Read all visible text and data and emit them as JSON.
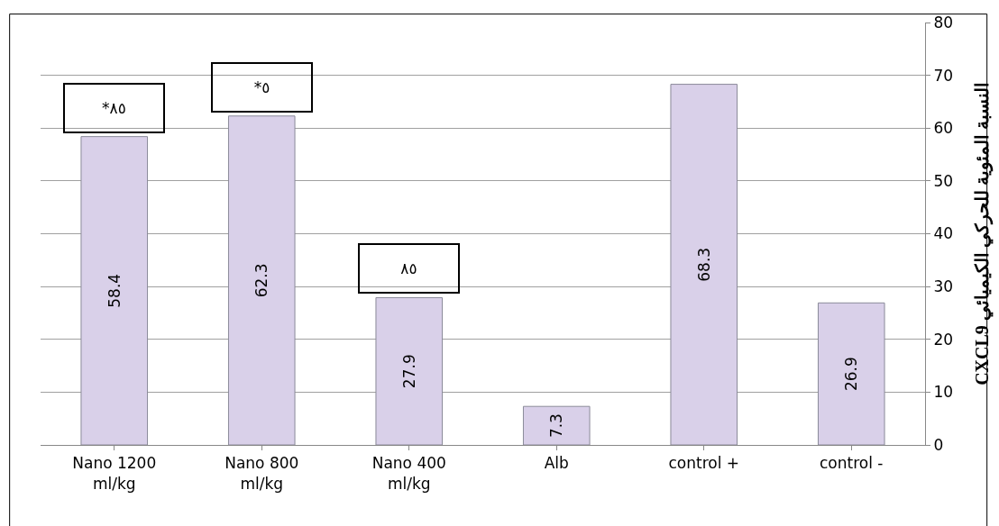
{
  "chart_data": {
    "type": "bar",
    "ylabel": "النسبة المئوية للحركي الكيميائي CXCL9",
    "categories": [
      "Nano 1200 ml/kg",
      "Nano 800 ml/kg",
      "Nano 400 ml/kg",
      "Alb",
      "control +",
      "control -"
    ],
    "values": [
      58.4,
      62.3,
      27.9,
      7.3,
      68.3,
      26.9
    ],
    "color": "#d9d0e9",
    "data_labels": true,
    "ylim": [
      0,
      80
    ],
    "yticks": [
      0,
      10,
      20,
      30,
      40,
      50,
      60,
      70,
      80
    ],
    "grid": "y",
    "annotations": [
      {
        "text": "*٨٥",
        "x": "Nano 1200 ml/kg",
        "y": 58.4
      },
      {
        "text": "*٥",
        "x": "Nano 800 ml/kg",
        "y": 62.3
      },
      {
        "text": "٨٥",
        "x": "Nano 400 ml/kg",
        "y": 27.9
      }
    ]
  }
}
